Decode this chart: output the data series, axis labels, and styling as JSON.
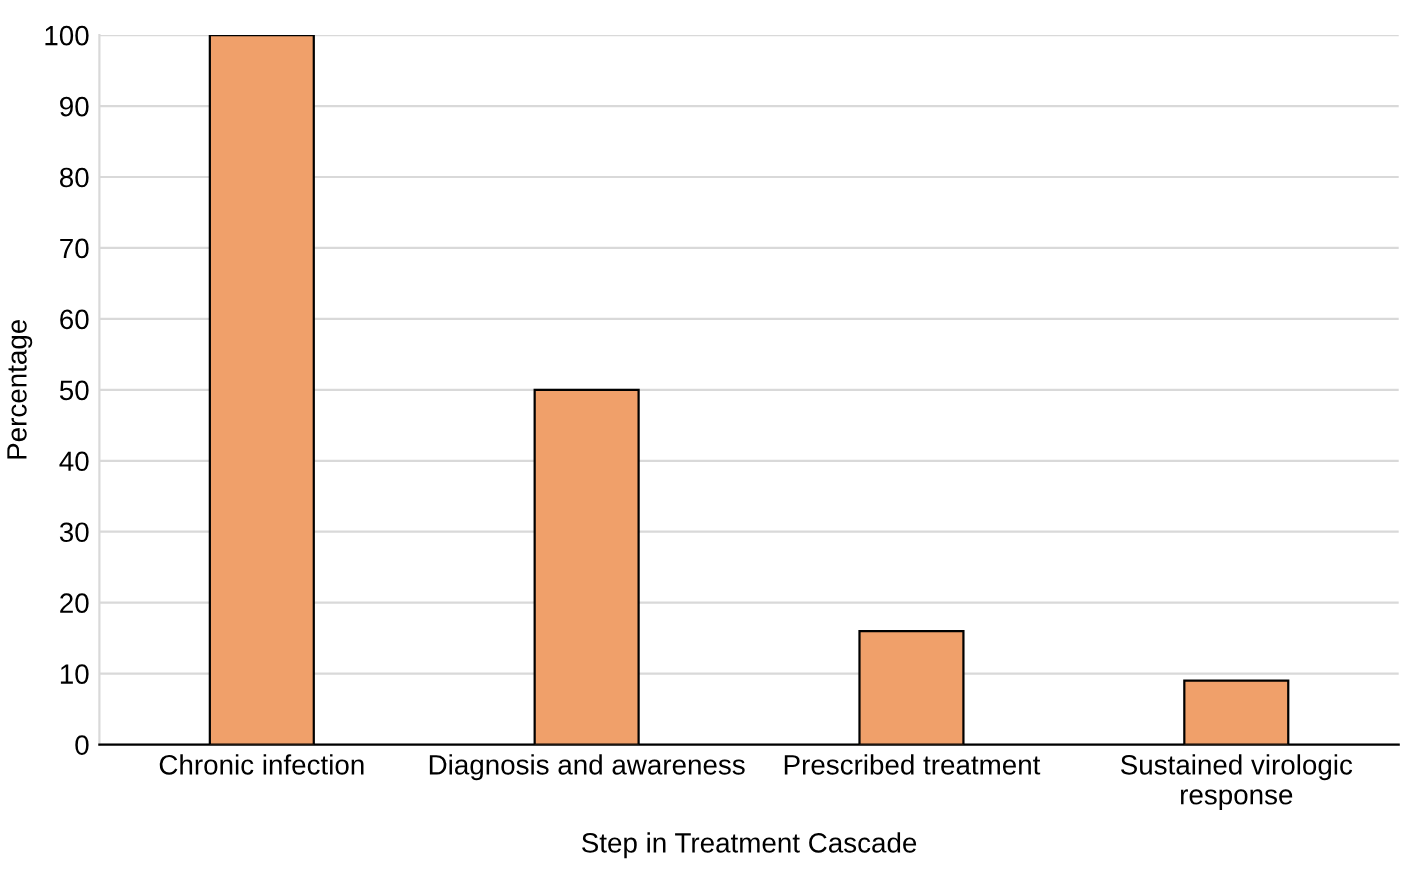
{
  "chart_data": {
    "type": "bar",
    "xlabel": "Step in Treatment Cascade",
    "ylabel": "Percentage",
    "categories": [
      "Chronic infection",
      "Diagnosis and awareness",
      "Prescribed treatment",
      "Sustained virologic response"
    ],
    "values": [
      100,
      50,
      16,
      9
    ],
    "color": "#f0a06a",
    "ylim": [
      0,
      100
    ],
    "yticks": [
      0,
      10,
      20,
      30,
      40,
      50,
      60,
      70,
      80,
      90,
      100
    ],
    "grid": "y"
  }
}
